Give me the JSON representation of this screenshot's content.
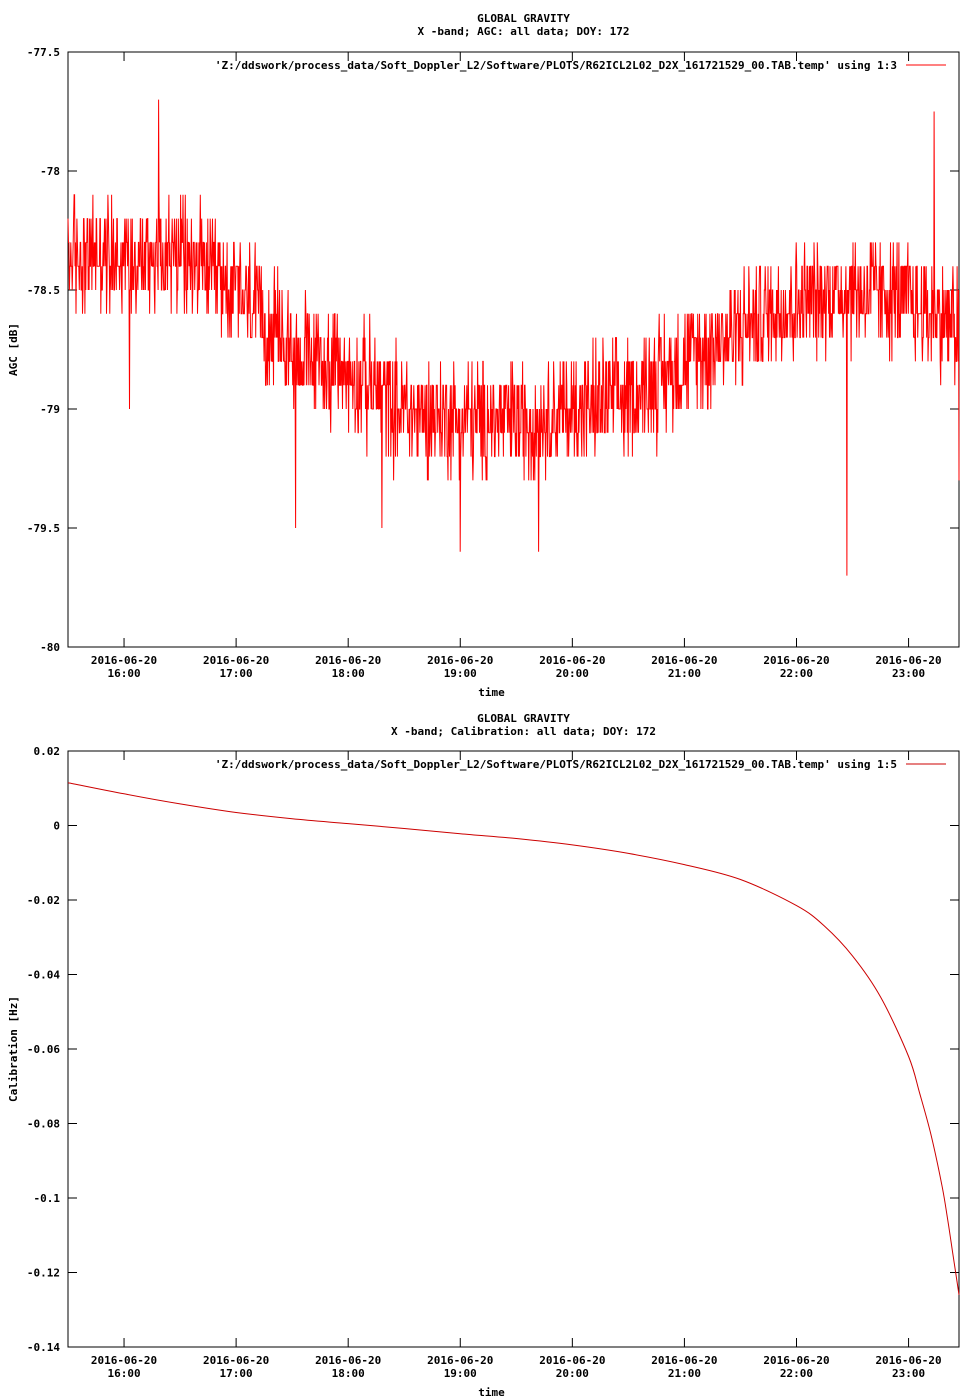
{
  "chart_data": [
    {
      "type": "line",
      "title": "GLOBAL GRAVITY",
      "subtitle": "X -band; AGC: all data; DOY: 172",
      "xlabel": "time",
      "ylabel": "AGC [dB]",
      "ylim": [
        -80,
        -77.5
      ],
      "xlim": [
        15.5,
        23.45
      ],
      "yticks": [
        {
          "value": -77.5,
          "label": "-77.5"
        },
        {
          "value": -78,
          "label": "-78"
        },
        {
          "value": -78.5,
          "label": "-78.5"
        },
        {
          "value": -79,
          "label": "-79"
        },
        {
          "value": -79.5,
          "label": "-79.5"
        },
        {
          "value": -80,
          "label": "-80"
        }
      ],
      "xticks": [
        {
          "value": 16,
          "date": "2016-06-20",
          "time": "16:00"
        },
        {
          "value": 17,
          "date": "2016-06-20",
          "time": "17:00"
        },
        {
          "value": 18,
          "date": "2016-06-20",
          "time": "18:00"
        },
        {
          "value": 19,
          "date": "2016-06-20",
          "time": "19:00"
        },
        {
          "value": 20,
          "date": "2016-06-20",
          "time": "20:00"
        },
        {
          "value": 21,
          "date": "2016-06-20",
          "time": "21:00"
        },
        {
          "value": 22,
          "date": "2016-06-20",
          "time": "22:00"
        },
        {
          "value": 23,
          "date": "2016-06-20",
          "time": "23:00"
        }
      ],
      "legend_position": "top-right",
      "grid": false,
      "series": [
        {
          "name": "'Z:/ddswork/process_data/Soft_Doppler_L2/Software/PLOTS/R62ICL2L02_D2X_161721529_00.TAB.temp' using 1:3",
          "color": "#ff0000",
          "style": "noisy",
          "x": [
            15.5,
            16.0,
            16.5,
            17.0,
            17.5,
            18.0,
            18.5,
            19.0,
            19.5,
            20.0,
            20.5,
            21.0,
            21.5,
            22.0,
            22.5,
            23.0,
            23.45
          ],
          "values": [
            -78.35,
            -78.35,
            -78.35,
            -78.5,
            -78.75,
            -78.85,
            -79.0,
            -79.05,
            -79.05,
            -79.0,
            -78.95,
            -78.8,
            -78.65,
            -78.55,
            -78.5,
            -78.55,
            -78.65
          ],
          "spread": 0.3,
          "spikes": [
            {
              "x": 16.31,
              "y": -77.7
            },
            {
              "x": 16.05,
              "y": -79.0
            },
            {
              "x": 17.53,
              "y": -79.5
            },
            {
              "x": 18.3,
              "y": -79.5
            },
            {
              "x": 19.0,
              "y": -79.6
            },
            {
              "x": 19.7,
              "y": -79.6
            },
            {
              "x": 22.45,
              "y": -79.7
            },
            {
              "x": 23.23,
              "y": -77.75
            },
            {
              "x": 23.45,
              "y": -79.3
            }
          ]
        }
      ]
    },
    {
      "type": "line",
      "title": "GLOBAL GRAVITY",
      "subtitle": "X -band; Calibration: all data; DOY: 172",
      "xlabel": "time",
      "ylabel": "Calibration [Hz]",
      "ylim": [
        -0.14,
        0.02
      ],
      "xlim": [
        15.5,
        23.45
      ],
      "yticks": [
        {
          "value": 0.02,
          "label": "0.02"
        },
        {
          "value": 0,
          "label": "0"
        },
        {
          "value": -0.02,
          "label": "-0.02"
        },
        {
          "value": -0.04,
          "label": "-0.04"
        },
        {
          "value": -0.06,
          "label": "-0.06"
        },
        {
          "value": -0.08,
          "label": "-0.08"
        },
        {
          "value": -0.1,
          "label": "-0.1"
        },
        {
          "value": -0.12,
          "label": "-0.12"
        },
        {
          "value": -0.14,
          "label": "-0.14"
        }
      ],
      "xticks": [
        {
          "value": 16,
          "date": "2016-06-20",
          "time": "16:00"
        },
        {
          "value": 17,
          "date": "2016-06-20",
          "time": "17:00"
        },
        {
          "value": 18,
          "date": "2016-06-20",
          "time": "18:00"
        },
        {
          "value": 19,
          "date": "2016-06-20",
          "time": "19:00"
        },
        {
          "value": 20,
          "date": "2016-06-20",
          "time": "20:00"
        },
        {
          "value": 21,
          "date": "2016-06-20",
          "time": "21:00"
        },
        {
          "value": 22,
          "date": "2016-06-20",
          "time": "22:00"
        },
        {
          "value": 23,
          "date": "2016-06-20",
          "time": "23:00"
        }
      ],
      "legend_position": "top-right",
      "grid": false,
      "series": [
        {
          "name": "'Z:/ddswork/process_data/Soft_Doppler_L2/Software/PLOTS/R62ICL2L02_D2X_161721529_00.TAB.temp' using 1:5",
          "color": "#cc0000",
          "style": "smooth",
          "x": [
            15.5,
            16.0,
            16.5,
            17.0,
            17.5,
            18.0,
            18.5,
            19.0,
            19.5,
            20.0,
            20.5,
            21.0,
            21.5,
            22.0,
            22.25,
            22.5,
            22.75,
            23.0,
            23.1,
            23.2,
            23.3,
            23.35,
            23.4,
            23.45
          ],
          "values": [
            0.0115,
            0.0085,
            0.0058,
            0.0035,
            0.0018,
            0.0005,
            -0.0008,
            -0.0022,
            -0.0035,
            -0.0052,
            -0.0075,
            -0.0105,
            -0.0145,
            -0.0215,
            -0.027,
            -0.035,
            -0.046,
            -0.062,
            -0.072,
            -0.083,
            -0.097,
            -0.106,
            -0.116,
            -0.126
          ]
        }
      ]
    }
  ]
}
